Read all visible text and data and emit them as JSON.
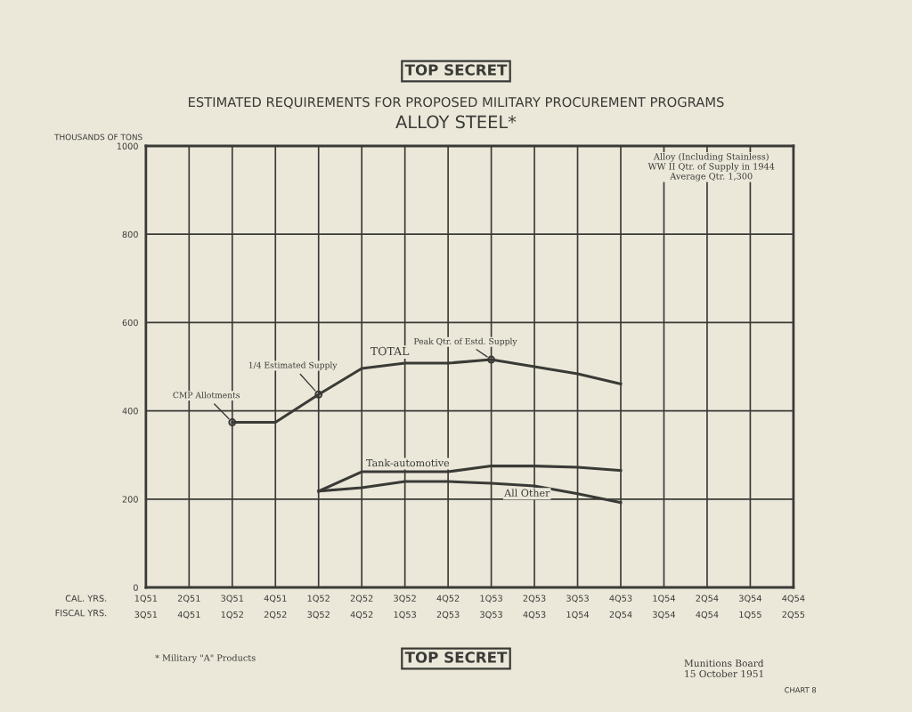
{
  "chart_data": {
    "type": "line",
    "title": "ESTIMATED REQUIREMENTS FOR PROPOSED MILITARY PROCUREMENT PROGRAMS",
    "subtitle": "ALLOY STEEL*",
    "ylabel": "THOUSANDS OF TONS",
    "xlabel": "CAL. YRS.",
    "x2label": "FISCAL YRS.",
    "categories": [
      "1Q51\n3Q51",
      "2Q51\n4Q51",
      "3Q51\n1Q52",
      "4Q51\n2Q52",
      "1Q52\n3Q52",
      "2Q52\n4Q52",
      "3Q52\n1Q53",
      "4Q52\n2Q53",
      "1Q53\n3Q53",
      "2Q53\n4Q53",
      "3Q53\n1Q54",
      "4Q53\n2Q54",
      "1Q54\n3Q54",
      "2Q54\n4Q54",
      "3Q54\n1Q55",
      "4Q54\n2Q55"
    ],
    "series": [
      {
        "name": "TOTAL",
        "color": "#3a3a36",
        "values": [
          null,
          null,
          374,
          374,
          437,
          496,
          508,
          508,
          516,
          500,
          484,
          461,
          null,
          null,
          null,
          null
        ]
      },
      {
        "name": "Tank-automotive",
        "color": "#3a3a36",
        "values": [
          null,
          null,
          null,
          null,
          218,
          262,
          262,
          262,
          275,
          275,
          272,
          265,
          null,
          null,
          null,
          null
        ]
      },
      {
        "name": "All Other",
        "color": "#3a3a36",
        "values": [
          null,
          null,
          null,
          null,
          218,
          226,
          240,
          240,
          236,
          230,
          212,
          192,
          null,
          null,
          null,
          null
        ]
      }
    ],
    "ylim": [
      0,
      1000
    ],
    "yticks": [
      0,
      200,
      400,
      600,
      800,
      1000
    ],
    "grid": true,
    "marker": "none",
    "line_style": "solid",
    "annotations": [
      {
        "text": "CMP Allotments",
        "x": "3Q51\n1Q52",
        "y": 374
      },
      {
        "text": "1/4 Estimated Supply",
        "x": "1Q52\n3Q52",
        "y": 437
      },
      {
        "text": "Peak Qtr. of Estd. Supply",
        "x": "1Q53\n3Q53",
        "y": 516
      },
      "Alloy (Including Stainless)\nWW II Qtr. of Supply in 1944\nAverage Qtr. 1,300",
      "TOP SECRET",
      "TOP SECRET",
      "* Military \"A\" Products",
      "Munitions Board\n15 October 1951",
      "CHART 8"
    ]
  }
}
